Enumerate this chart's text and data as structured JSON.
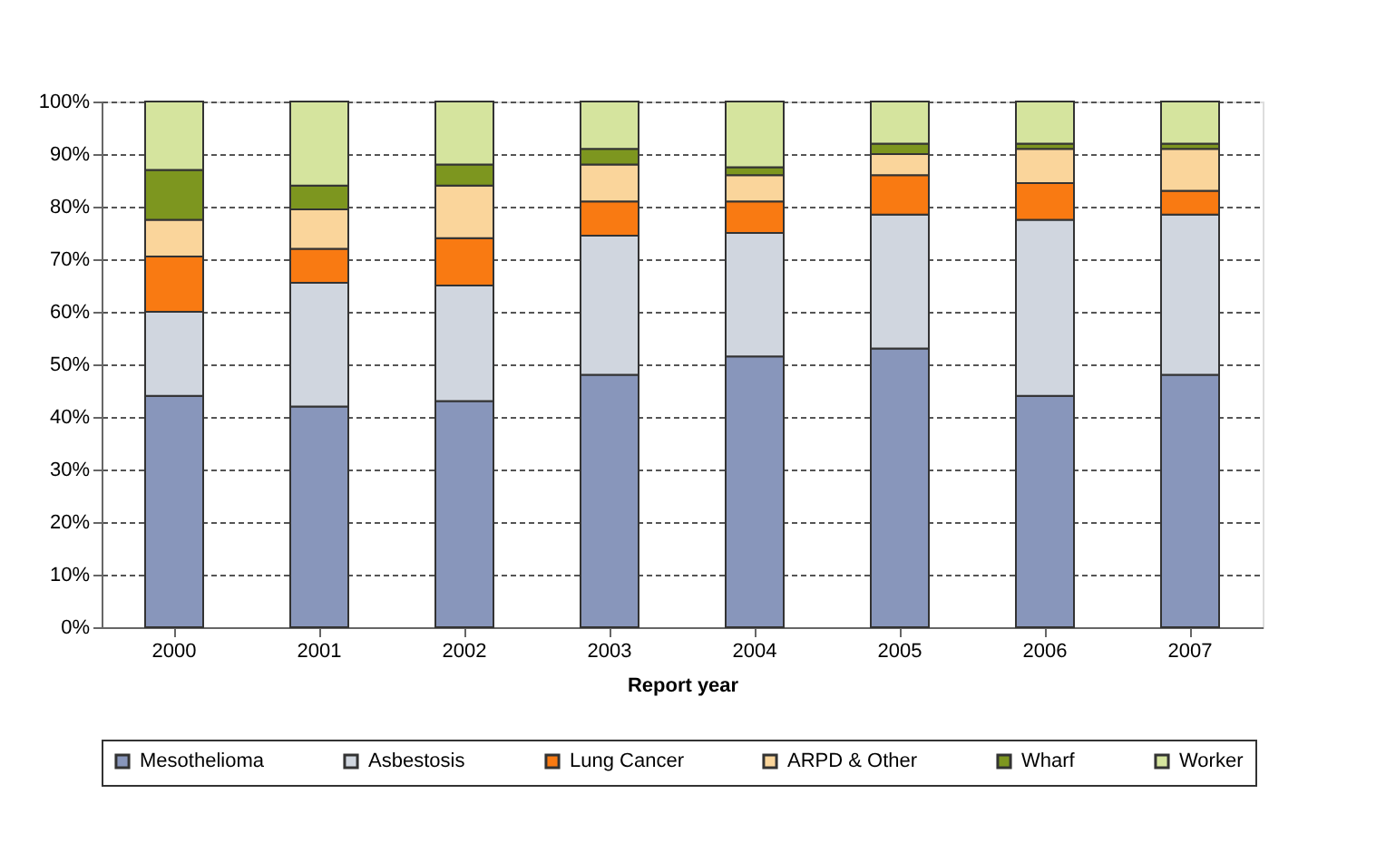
{
  "chart_data": {
    "type": "bar",
    "stacked": true,
    "xlabel": "Report year",
    "categories": [
      "2000",
      "2001",
      "2002",
      "2003",
      "2004",
      "2005",
      "2006",
      "2007"
    ],
    "series": [
      {
        "name": "Mesothelioma",
        "color": "#8896bb",
        "values": [
          44,
          42,
          43,
          48,
          51.5,
          53,
          44,
          48
        ]
      },
      {
        "name": "Asbestosis",
        "color": "#d0d6df",
        "values": [
          16,
          23.5,
          22,
          26.5,
          23.5,
          25.5,
          33.5,
          30.5
        ]
      },
      {
        "name": "Lung Cancer",
        "color": "#f97a12",
        "values": [
          10.5,
          6.5,
          9,
          6.5,
          6,
          7.5,
          7,
          4.5
        ]
      },
      {
        "name": "ARPD & Other",
        "color": "#fad59b",
        "values": [
          7,
          7.5,
          10,
          7,
          5,
          4,
          6.5,
          8
        ]
      },
      {
        "name": "Wharf",
        "color": "#7d961f",
        "values": [
          9.5,
          4.5,
          4,
          3,
          1.5,
          2,
          1,
          1
        ]
      },
      {
        "name": "Worker",
        "color": "#d5e49e",
        "values": [
          13,
          16,
          12,
          9,
          12.5,
          8,
          8,
          8
        ]
      }
    ],
    "ylim": [
      0,
      100
    ],
    "yticks": [
      {
        "value": 0,
        "label": "0%"
      },
      {
        "value": 10,
        "label": "10%"
      },
      {
        "value": 20,
        "label": "20%"
      },
      {
        "value": 30,
        "label": "30%"
      },
      {
        "value": 40,
        "label": "40%"
      },
      {
        "value": 50,
        "label": "50%"
      },
      {
        "value": 60,
        "label": "60%"
      },
      {
        "value": 70,
        "label": "70%"
      },
      {
        "value": 80,
        "label": "80%"
      },
      {
        "value": 90,
        "label": "90%"
      },
      {
        "value": 100,
        "label": "100%"
      }
    ],
    "grid": "y",
    "legend": "bottom"
  }
}
